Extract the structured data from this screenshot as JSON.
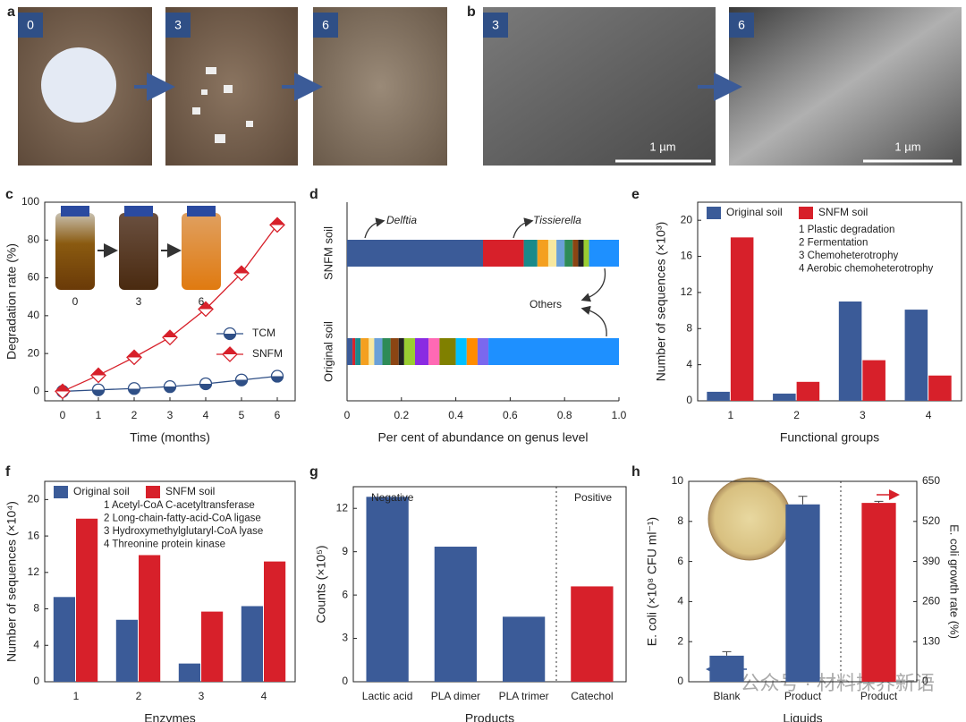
{
  "photos": {
    "a": {
      "label": "a",
      "frames": [
        "0",
        "3",
        "6"
      ]
    },
    "b": {
      "label": "b",
      "frames": [
        "3",
        "6"
      ],
      "scale_bars": [
        "1 µm",
        "1 µm"
      ]
    }
  },
  "watermark": "公众号 · 材料探界新语",
  "chart_data": [
    {
      "type": "line",
      "label": "c",
      "xlabel": "Time (months)",
      "ylabel": "Degradation rate (%)",
      "x": [
        0,
        1,
        2,
        3,
        4,
        5,
        6
      ],
      "xlim": [
        -0.5,
        6.5
      ],
      "xticks": [
        0,
        1,
        2,
        3,
        4,
        5,
        6
      ],
      "ylim": [
        -5,
        100
      ],
      "yticks": [
        0,
        20,
        40,
        60,
        80,
        100
      ],
      "inset_labels": [
        "0",
        "3",
        "6"
      ],
      "series": [
        {
          "name": "TCM",
          "color": "#2f4f86",
          "marker": "circle",
          "values": [
            0,
            0.8,
            1.5,
            2.5,
            4,
            6,
            8
          ]
        },
        {
          "name": "SNFM",
          "color": "#d7202a",
          "marker": "diamond",
          "values": [
            0,
            8.5,
            18,
            28.5,
            43.5,
            62.5,
            88
          ]
        }
      ]
    },
    {
      "type": "hstacked",
      "label": "d",
      "xlabel": "Per cent of abundance on genus level",
      "categories": [
        "SNFM soil",
        "Original soil"
      ],
      "xlim": [
        0,
        1
      ],
      "xticks": [
        0,
        0.2,
        0.4,
        0.6,
        0.8,
        {
          "value": 1,
          "label": "1.0"
        }
      ],
      "annotations": [
        "Delftia",
        "Tissierella",
        "Others"
      ],
      "series": [
        {
          "color": "#3b5b98",
          "values": [
            0.5,
            0.02
          ]
        },
        {
          "color": "#d7202a",
          "values": [
            0.15,
            0.01
          ]
        },
        {
          "color": "#1a8a8a",
          "values": [
            0.05,
            0.02
          ]
        },
        {
          "color": "#f4a020",
          "values": [
            0.04,
            0.03
          ]
        },
        {
          "color": "#f7e8a0",
          "values": [
            0.03,
            0.02
          ]
        },
        {
          "color": "#6aa0d8",
          "values": [
            0.03,
            0.03
          ]
        },
        {
          "color": "#2e8b57",
          "values": [
            0.03,
            0.03
          ]
        },
        {
          "color": "#8b4513",
          "values": [
            0.02,
            0.03
          ]
        },
        {
          "color": "#222222",
          "values": [
            0.02,
            0.02
          ]
        },
        {
          "color": "#9acd32",
          "values": [
            0.02,
            0.04
          ]
        },
        {
          "color": "#8a2be2",
          "values": [
            0,
            0.05
          ]
        },
        {
          "color": "#ff69b4",
          "values": [
            0,
            0.04
          ]
        },
        {
          "color": "#808000",
          "values": [
            0,
            0.06
          ]
        },
        {
          "color": "#00bfff",
          "values": [
            0,
            0.04
          ]
        },
        {
          "color": "#ff8c00",
          "values": [
            0,
            0.04
          ]
        },
        {
          "color": "#7b68ee",
          "values": [
            0,
            0.04
          ]
        },
        {
          "color": "#1e90ff",
          "values": [
            0.11,
            0.48
          ]
        }
      ]
    },
    {
      "type": "grouped",
      "label": "e",
      "xlabel": "Functional groups",
      "ylabel": "Number of sequences (×10³)",
      "categories": [
        "1",
        "2",
        "3",
        "4"
      ],
      "ylim": [
        0,
        22
      ],
      "yticks": [
        0,
        4,
        8,
        12,
        16,
        20
      ],
      "notes": [
        "1 Plastic degradation",
        "2 Fermentation",
        "3 Chemoheterotrophy",
        "4 Aerobic chemoheterotrophy"
      ],
      "series": [
        {
          "name": "Original soil",
          "color": "#3b5b98",
          "values": [
            1,
            0.8,
            11,
            10.1
          ]
        },
        {
          "name": "SNFM soil",
          "color": "#d7202a",
          "values": [
            18.1,
            2.1,
            4.5,
            2.8
          ]
        }
      ]
    },
    {
      "type": "grouped",
      "label": "f",
      "xlabel": "Enzymes",
      "ylabel": "Number of sequences (×10⁴)",
      "categories": [
        "1",
        "2",
        "3",
        "4"
      ],
      "ylim": [
        0,
        22
      ],
      "yticks": [
        0,
        4,
        8,
        12,
        16,
        20
      ],
      "notes": [
        "1 Acetyl-CoA C-acetyltransferase",
        "2 Long-chain-fatty-acid-CoA ligase",
        "3 Hydroxymethylglutaryl-CoA lyase",
        "4 Threonine protein kinase"
      ],
      "series": [
        {
          "name": "Original soil",
          "color": "#3b5b98",
          "values": [
            9.3,
            6.8,
            2,
            8.3
          ]
        },
        {
          "name": "SNFM soil",
          "color": "#d7202a",
          "values": [
            17.9,
            13.9,
            7.7,
            13.2
          ]
        }
      ]
    },
    {
      "type": "bar",
      "label": "g",
      "xlabel": "Products",
      "ylabel": "Counts (×10⁵)",
      "categories": [
        "Lactic acid",
        "PLA dimer",
        "PLA trimer",
        "Catechol"
      ],
      "values": [
        12.8,
        9.35,
        4.5,
        6.6
      ],
      "colors": [
        "#3b5b98",
        "#3b5b98",
        "#3b5b98",
        "#d7202a"
      ],
      "ylim": [
        0,
        13.5
      ],
      "yticks": [
        0,
        3,
        6,
        9,
        12
      ],
      "annotations": [
        "Negative",
        "Positive"
      ]
    },
    {
      "type": "dualbar",
      "label": "h",
      "xlabel": "Liquids",
      "ylabel": "E. coli (×10⁸ CFU ml⁻¹)",
      "y2label": "E. coli growth rate (%)",
      "categories": [
        "Blank",
        "Product",
        "Product"
      ],
      "ylim": [
        0,
        10
      ],
      "yticks": [
        0,
        2,
        4,
        6,
        8,
        10
      ],
      "y2lim": [
        0,
        650
      ],
      "y2ticks": [
        0,
        130,
        260,
        390,
        520,
        650
      ],
      "series": [
        {
          "color": "#3b5b98",
          "values": [
            1.3,
            8.85,
            null
          ],
          "errors": [
            0.2,
            0.4,
            null
          ]
        },
        {
          "color": "#d7202a",
          "axis": "y2",
          "values": [
            null,
            null,
            580
          ],
          "errors": [
            null,
            null,
            5
          ]
        }
      ]
    }
  ]
}
